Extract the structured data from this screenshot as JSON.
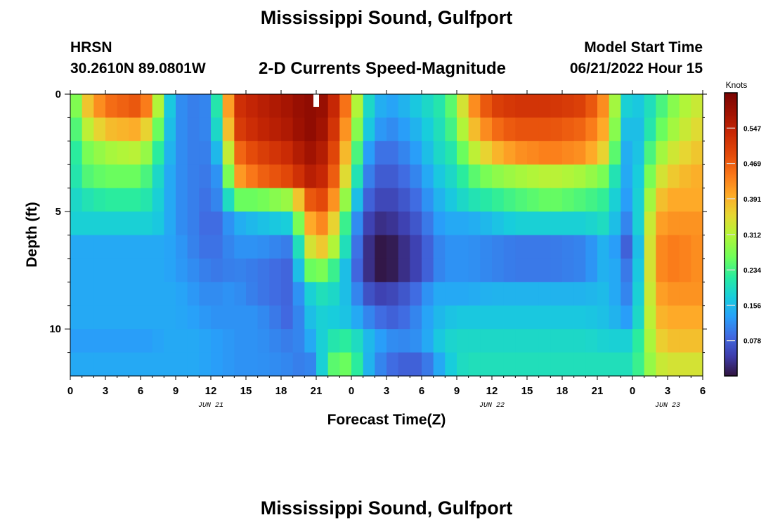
{
  "header": {
    "title": "Mississippi Sound, Gulfport",
    "station": "HRSN",
    "coordinates": "30.2610N  89.0801W",
    "chart_heading": "2-D Currents Speed-Magnitude",
    "model_start_label": "Model Start Time",
    "model_start_value": "06/21/2022 Hour 15"
  },
  "footer": {
    "title": "Mississippi Sound, Gulfport"
  },
  "chart_data": {
    "type": "heatmap",
    "title": "2-D Currents Speed-Magnitude",
    "xlabel": "Forecast Time(Z)",
    "ylabel": "Depth (ft)",
    "x_ticks": [
      "0",
      "3",
      "6",
      "9",
      "12",
      "15",
      "18",
      "21",
      "0",
      "3",
      "6",
      "9",
      "12",
      "15",
      "18",
      "21",
      "0",
      "3",
      "6"
    ],
    "date_labels": [
      {
        "label": "JUN 21",
        "hour": 12
      },
      {
        "label": "JUN 22",
        "hour": 36
      },
      {
        "label": "JUN 23",
        "hour": 51
      }
    ],
    "y_ticks": [
      "0",
      "5",
      "10"
    ],
    "ylim": [
      0,
      12
    ],
    "xlim_hours": [
      0,
      54
    ],
    "now_marker_hour": 21,
    "colorbar": {
      "label": "Knots",
      "ticks": [
        "0.078",
        "0.156",
        "0.234",
        "0.312",
        "0.391",
        "0.469",
        "0.547"
      ],
      "range": [
        0,
        0.625
      ]
    },
    "depth_bands": [
      0.5,
      1.5,
      2.5,
      3.5,
      4.5,
      5.5,
      6.5,
      7.5,
      8.5,
      9.5,
      10.5,
      11.5
    ],
    "time_keys": [
      0,
      1,
      3,
      6,
      7,
      8,
      9,
      11,
      12,
      13,
      14,
      16,
      19,
      20,
      21,
      22,
      23,
      24,
      25,
      26,
      27,
      28,
      30,
      31,
      32,
      33,
      34,
      36,
      38,
      41,
      44,
      46,
      47,
      48,
      49,
      50,
      51,
      52,
      54
    ],
    "speed_rows": [
      [
        0.2,
        0.35,
        0.45,
        0.48,
        0.4,
        0.22,
        0.12,
        0.1,
        0.12,
        0.3,
        0.52,
        0.55,
        0.58,
        0.6,
        0.6,
        0.58,
        0.5,
        0.4,
        0.22,
        0.16,
        0.13,
        0.14,
        0.18,
        0.2,
        0.22,
        0.28,
        0.4,
        0.5,
        0.52,
        0.52,
        0.5,
        0.4,
        0.2,
        0.16,
        0.18,
        0.22,
        0.26,
        0.3,
        0.34
      ],
      [
        0.19,
        0.3,
        0.38,
        0.4,
        0.32,
        0.2,
        0.12,
        0.1,
        0.12,
        0.26,
        0.5,
        0.54,
        0.57,
        0.6,
        0.6,
        0.56,
        0.48,
        0.36,
        0.2,
        0.14,
        0.11,
        0.12,
        0.16,
        0.19,
        0.21,
        0.26,
        0.36,
        0.45,
        0.48,
        0.48,
        0.46,
        0.38,
        0.18,
        0.14,
        0.18,
        0.24,
        0.28,
        0.32,
        0.36
      ],
      [
        0.18,
        0.26,
        0.3,
        0.32,
        0.26,
        0.18,
        0.12,
        0.1,
        0.11,
        0.2,
        0.45,
        0.5,
        0.54,
        0.58,
        0.58,
        0.54,
        0.45,
        0.32,
        0.16,
        0.1,
        0.09,
        0.1,
        0.14,
        0.18,
        0.2,
        0.22,
        0.3,
        0.38,
        0.42,
        0.44,
        0.42,
        0.34,
        0.16,
        0.13,
        0.2,
        0.28,
        0.32,
        0.35,
        0.38
      ],
      [
        0.18,
        0.24,
        0.26,
        0.26,
        0.22,
        0.16,
        0.12,
        0.1,
        0.1,
        0.14,
        0.4,
        0.46,
        0.5,
        0.55,
        0.56,
        0.52,
        0.42,
        0.28,
        0.13,
        0.08,
        0.07,
        0.08,
        0.12,
        0.16,
        0.18,
        0.2,
        0.24,
        0.28,
        0.3,
        0.32,
        0.3,
        0.26,
        0.15,
        0.13,
        0.22,
        0.32,
        0.36,
        0.38,
        0.4
      ],
      [
        0.18,
        0.2,
        0.22,
        0.22,
        0.2,
        0.16,
        0.12,
        0.1,
        0.09,
        0.13,
        0.26,
        0.26,
        0.3,
        0.45,
        0.5,
        0.48,
        0.36,
        0.22,
        0.1,
        0.06,
        0.05,
        0.06,
        0.1,
        0.14,
        0.16,
        0.18,
        0.2,
        0.22,
        0.24,
        0.26,
        0.24,
        0.22,
        0.14,
        0.12,
        0.24,
        0.36,
        0.4,
        0.4,
        0.4
      ],
      [
        0.18,
        0.18,
        0.18,
        0.18,
        0.18,
        0.16,
        0.12,
        0.1,
        0.08,
        0.1,
        0.14,
        0.16,
        0.18,
        0.36,
        0.44,
        0.42,
        0.3,
        0.16,
        0.07,
        0.03,
        0.03,
        0.04,
        0.08,
        0.12,
        0.14,
        0.14,
        0.14,
        0.16,
        0.18,
        0.18,
        0.18,
        0.2,
        0.12,
        0.1,
        0.26,
        0.4,
        0.42,
        0.42,
        0.42
      ],
      [
        0.14,
        0.14,
        0.14,
        0.14,
        0.14,
        0.14,
        0.13,
        0.1,
        0.09,
        0.1,
        0.12,
        0.12,
        0.1,
        0.3,
        0.38,
        0.36,
        0.26,
        0.14,
        0.05,
        0.01,
        0.0,
        0.02,
        0.06,
        0.1,
        0.12,
        0.12,
        0.12,
        0.11,
        0.1,
        0.1,
        0.11,
        0.16,
        0.1,
        0.06,
        0.26,
        0.42,
        0.44,
        0.44,
        0.42
      ],
      [
        0.14,
        0.14,
        0.14,
        0.14,
        0.14,
        0.14,
        0.13,
        0.11,
        0.1,
        0.1,
        0.11,
        0.1,
        0.08,
        0.24,
        0.28,
        0.26,
        0.2,
        0.12,
        0.05,
        0.01,
        0.0,
        0.02,
        0.06,
        0.1,
        0.12,
        0.12,
        0.12,
        0.11,
        0.1,
        0.1,
        0.11,
        0.16,
        0.12,
        0.08,
        0.26,
        0.42,
        0.44,
        0.44,
        0.42
      ],
      [
        0.14,
        0.14,
        0.14,
        0.14,
        0.14,
        0.14,
        0.14,
        0.12,
        0.11,
        0.12,
        0.12,
        0.1,
        0.08,
        0.16,
        0.2,
        0.2,
        0.18,
        0.14,
        0.08,
        0.05,
        0.05,
        0.06,
        0.1,
        0.14,
        0.14,
        0.14,
        0.14,
        0.15,
        0.15,
        0.15,
        0.15,
        0.16,
        0.12,
        0.1,
        0.26,
        0.4,
        0.42,
        0.42,
        0.42
      ],
      [
        0.14,
        0.14,
        0.14,
        0.14,
        0.14,
        0.14,
        0.14,
        0.13,
        0.12,
        0.12,
        0.12,
        0.12,
        0.08,
        0.14,
        0.18,
        0.18,
        0.17,
        0.16,
        0.12,
        0.1,
        0.08,
        0.08,
        0.12,
        0.15,
        0.16,
        0.17,
        0.17,
        0.17,
        0.17,
        0.17,
        0.17,
        0.16,
        0.14,
        0.12,
        0.26,
        0.38,
        0.4,
        0.4,
        0.4
      ],
      [
        0.13,
        0.13,
        0.13,
        0.13,
        0.13,
        0.14,
        0.14,
        0.14,
        0.13,
        0.13,
        0.12,
        0.12,
        0.1,
        0.12,
        0.16,
        0.2,
        0.22,
        0.22,
        0.17,
        0.14,
        0.12,
        0.11,
        0.12,
        0.16,
        0.18,
        0.19,
        0.19,
        0.19,
        0.19,
        0.19,
        0.19,
        0.18,
        0.18,
        0.18,
        0.26,
        0.35,
        0.38,
        0.38,
        0.38
      ],
      [
        0.14,
        0.14,
        0.14,
        0.14,
        0.14,
        0.14,
        0.14,
        0.14,
        0.13,
        0.13,
        0.12,
        0.12,
        0.11,
        0.1,
        0.12,
        0.24,
        0.26,
        0.26,
        0.18,
        0.12,
        0.1,
        0.08,
        0.08,
        0.12,
        0.16,
        0.19,
        0.2,
        0.2,
        0.2,
        0.2,
        0.2,
        0.2,
        0.2,
        0.2,
        0.26,
        0.32,
        0.34,
        0.34,
        0.34
      ]
    ]
  }
}
